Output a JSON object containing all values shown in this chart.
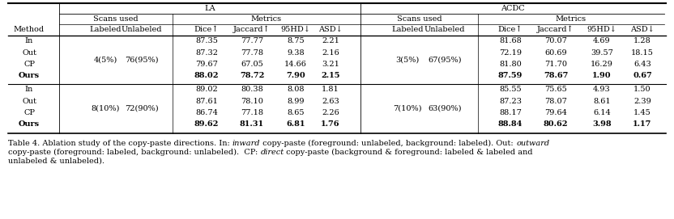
{
  "groups": [
    {
      "scans_label": "4(5%)",
      "scans_unlabel": "76(95%)",
      "scans_label_acdc": "3(5%)",
      "scans_unlabel_acdc": "67(95%)",
      "rows": [
        {
          "method": "In",
          "la": [
            "87.35",
            "77.77",
            "8.75",
            "2.21"
          ],
          "acdc": [
            "81.68",
            "70.07",
            "4.69",
            "1.28"
          ],
          "bold": false
        },
        {
          "method": "Out",
          "la": [
            "87.32",
            "77.78",
            "9.38",
            "2.16"
          ],
          "acdc": [
            "72.19",
            "60.69",
            "39.57",
            "18.15"
          ],
          "bold": false
        },
        {
          "method": "CP",
          "la": [
            "79.67",
            "67.05",
            "14.66",
            "3.21"
          ],
          "acdc": [
            "81.80",
            "71.70",
            "16.29",
            "6.43"
          ],
          "bold": false
        },
        {
          "method": "Ours",
          "la": [
            "88.02",
            "78.72",
            "7.90",
            "2.15"
          ],
          "acdc": [
            "87.59",
            "78.67",
            "1.90",
            "0.67"
          ],
          "bold": true
        }
      ]
    },
    {
      "scans_label": "8(10%)",
      "scans_unlabel": "72(90%)",
      "scans_label_acdc": "7(10%)",
      "scans_unlabel_acdc": "63(90%)",
      "rows": [
        {
          "method": "In",
          "la": [
            "89.02",
            "80.38",
            "8.08",
            "1.81"
          ],
          "acdc": [
            "85.55",
            "75.65",
            "4.93",
            "1.50"
          ],
          "bold": false
        },
        {
          "method": "Out",
          "la": [
            "87.61",
            "78.10",
            "8.99",
            "2.63"
          ],
          "acdc": [
            "87.23",
            "78.07",
            "8.61",
            "2.39"
          ],
          "bold": false
        },
        {
          "method": "CP",
          "la": [
            "86.74",
            "77.18",
            "8.65",
            "2.26"
          ],
          "acdc": [
            "88.17",
            "79.64",
            "6.14",
            "1.45"
          ],
          "bold": false
        },
        {
          "method": "Ours",
          "la": [
            "89.62",
            "81.31",
            "6.81",
            "1.76"
          ],
          "acdc": [
            "88.84",
            "80.62",
            "3.98",
            "1.17"
          ],
          "bold": true
        }
      ]
    }
  ],
  "bg_color": "#ffffff",
  "font_size": 7.0,
  "caption_font_size": 7.0,
  "fig_width": 8.32,
  "fig_height": 2.71,
  "dpi": 100
}
